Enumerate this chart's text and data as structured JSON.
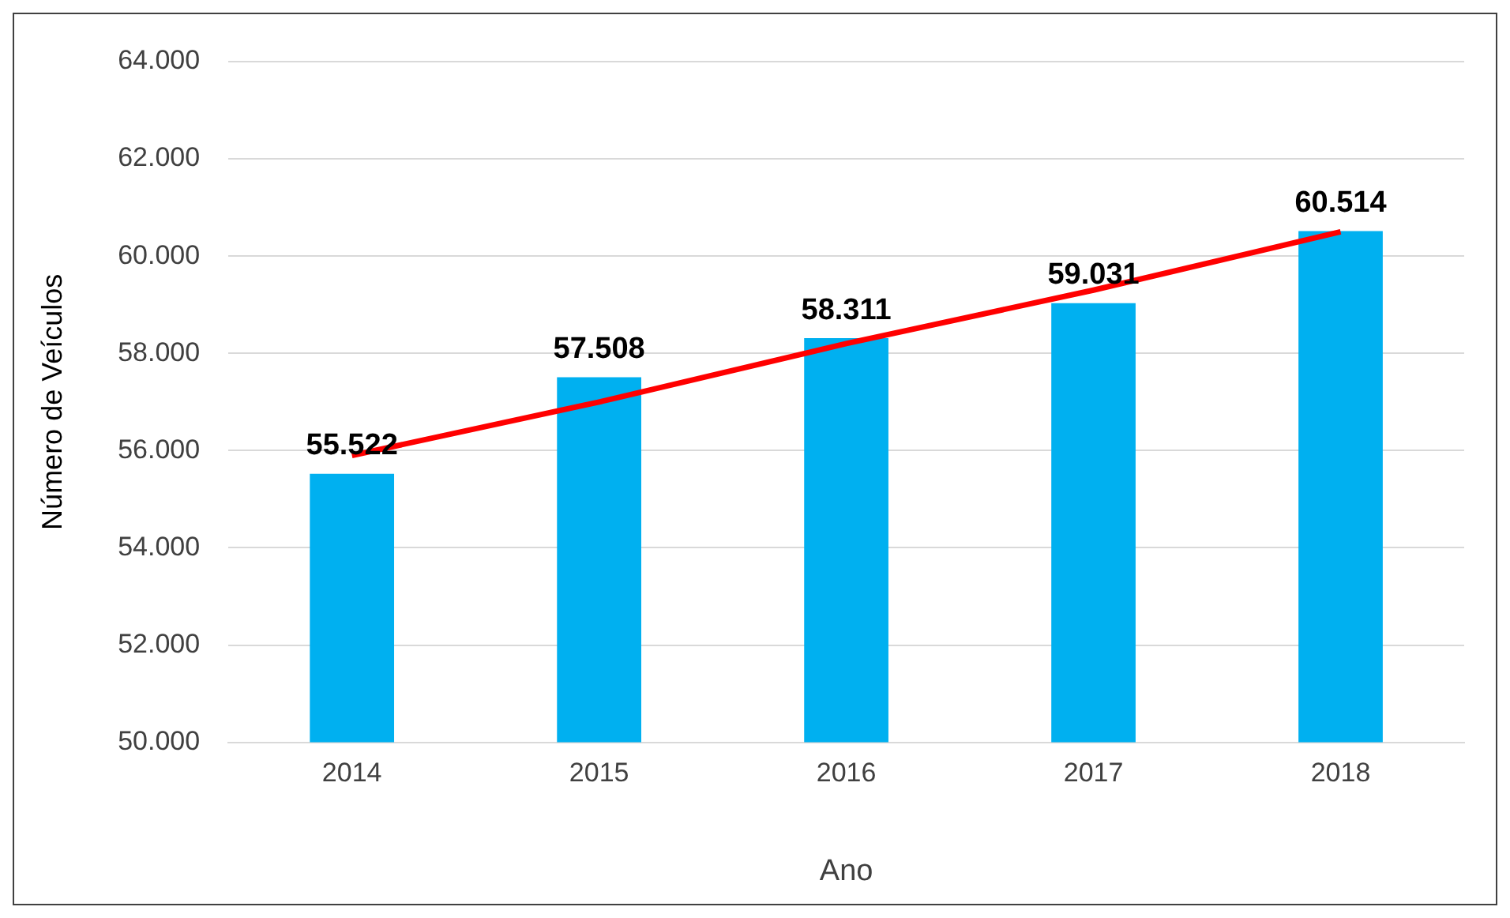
{
  "chart_data": {
    "type": "bar",
    "xlabel": "Ano",
    "ylabel": "Número de Veículos",
    "categories": [
      "2014",
      "2015",
      "2016",
      "2017",
      "2018"
    ],
    "series": [
      {
        "color": "#00b0f0",
        "values": [
          55522,
          57508,
          58311,
          59031,
          60514
        ],
        "value_labels": [
          "55.522",
          "57.508",
          "58.311",
          "59.031",
          "60.514"
        ]
      },
      {
        "type": "line",
        "color": "#ff0000",
        "values": [
          55900,
          57000,
          58200,
          59300,
          60500
        ]
      }
    ],
    "ylim": [
      50000,
      64000
    ],
    "yticks": [
      {
        "value": 50000,
        "label": "50.000"
      },
      {
        "value": 52000,
        "label": "52.000"
      },
      {
        "value": 54000,
        "label": "54.000"
      },
      {
        "value": 56000,
        "label": "56.000"
      },
      {
        "value": 58000,
        "label": "58.000"
      },
      {
        "value": 60000,
        "label": "60.000"
      },
      {
        "value": 62000,
        "label": "62.000"
      },
      {
        "value": 64000,
        "label": "64.000"
      }
    ],
    "grid": "y",
    "legend": false,
    "marker": "none",
    "line_style": "solid"
  }
}
